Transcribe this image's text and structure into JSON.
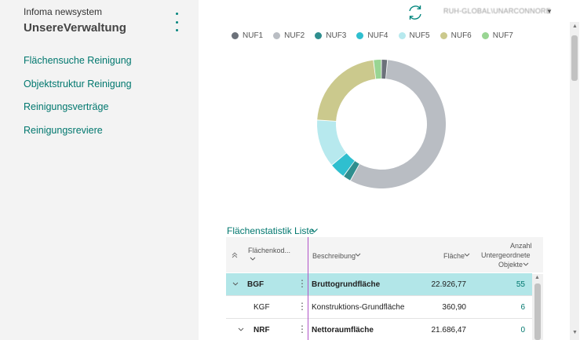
{
  "sidebar": {
    "app_subtitle": "Infoma newsystem",
    "app_title": "UnsereVerwaltung",
    "items": [
      {
        "label": "Flächensuche Reinigung"
      },
      {
        "label": "Objektstruktur Reinigung"
      },
      {
        "label": "Reinigungsverträge"
      },
      {
        "label": "Reinigungsreviere"
      }
    ]
  },
  "header": {
    "user_text": "RUH-GLOBAL\\UNARCONNORE"
  },
  "chart_data": {
    "type": "pie",
    "categories": [
      "NUF1",
      "NUF2",
      "NUF3",
      "NUF4",
      "NUF5",
      "NUF6",
      "NUF7"
    ],
    "values": [
      1.5,
      56.5,
      2,
      4,
      12,
      22,
      2
    ],
    "colors": [
      "#6c717a",
      "#b9bdc3",
      "#2f8e8e",
      "#2fbfcf",
      "#b7e9ee",
      "#cbc98d",
      "#99d593"
    ],
    "legend_position": "top"
  },
  "list": {
    "title": "Flächenstatistik Liste",
    "headers": {
      "code": "Flächenkod...",
      "description": "Beschreibung",
      "area": "Fläche",
      "count_line1": "Anzahl",
      "count_line2": "Untergeordnete",
      "count_line3": "Objekte"
    },
    "rows": [
      {
        "code": "BGF",
        "description": "Bruttogrundfläche",
        "area": "22.926,77",
        "count": "55"
      },
      {
        "code": "KGF",
        "description": "Konstruktions-Grundfläche",
        "area": "360,90",
        "count": "6"
      },
      {
        "code": "NRF",
        "description": "Nettoraumfläche",
        "area": "21.686,47",
        "count": "0"
      }
    ]
  }
}
